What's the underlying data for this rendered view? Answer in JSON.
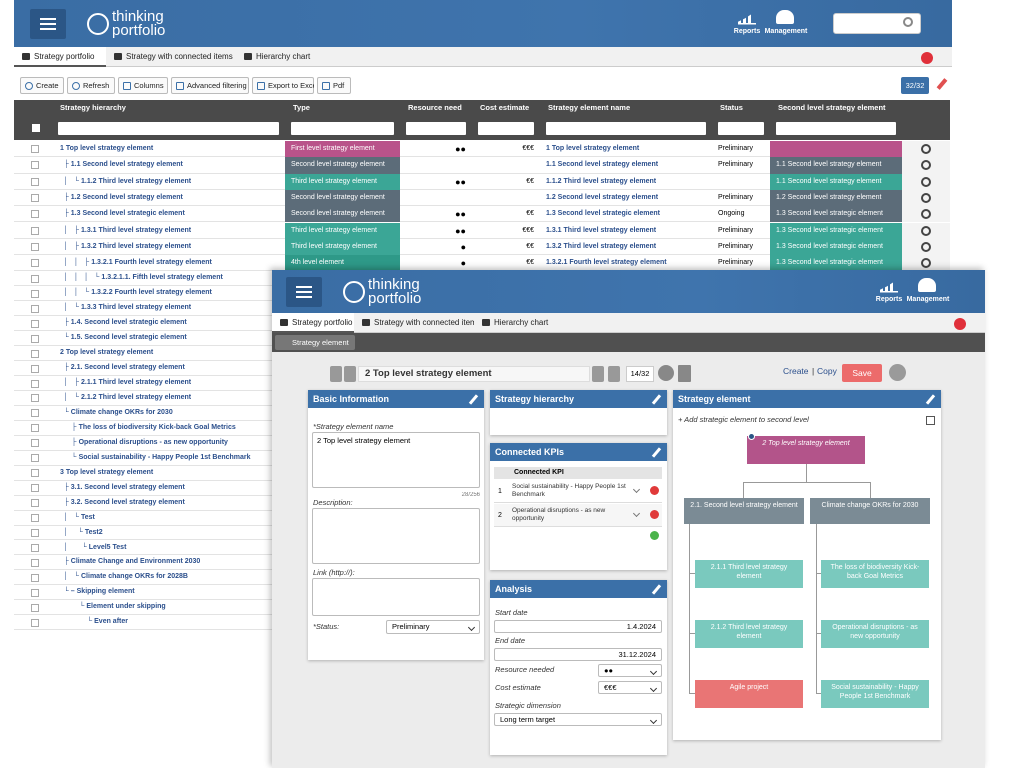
{
  "back": {
    "header": {
      "brand_line1": "thinking",
      "brand_line2": "portfolio",
      "reports": "Reports",
      "management": "Management"
    },
    "tabs": [
      "Strategy portfolio",
      "Strategy with connected items",
      "Hierarchy chart"
    ],
    "toolbar": [
      "Create",
      "Refresh",
      "Columns",
      "Advanced filtering",
      "Export to Excel",
      "Pdf"
    ],
    "count": "32/32",
    "columns": [
      "Strategy hierarchy",
      "Type",
      "Resource need",
      "Cost estimate",
      "Strategy element name",
      "Status",
      "Second level strategy element"
    ],
    "rows": [
      {
        "hierarchy": "1 Top level strategy element",
        "type": "First level strategy element",
        "type_color": "#b9538a",
        "resource": "●●",
        "cost": "€€€",
        "element": "1 Top level strategy element",
        "status": "Preliminary",
        "second": null,
        "second_color": "#b9538a"
      },
      {
        "hierarchy": "  ├ 1.1 Second level strategy element",
        "type": "Second level strategy element",
        "type_color": "#5c6c79",
        "resource": null,
        "cost": null,
        "element": "1.1 Second level strategy element",
        "status": "Preliminary",
        "second": "1.1 Second level strategy element",
        "second_color": "#5c6c79"
      },
      {
        "hierarchy": "  │   └ 1.1.2 Third level strategy element",
        "type": "Third level strategy element",
        "type_color": "#3ba696",
        "resource": "●●",
        "cost": "€€",
        "element": "1.1.2 Third level strategy element",
        "status": null,
        "second": "1.1 Second level strategy element",
        "second_color": "#3ba696"
      },
      {
        "hierarchy": "  ├ 1.2 Second level strategy element",
        "type": "Second level strategy element",
        "type_color": "#5c6c79",
        "resource": null,
        "cost": null,
        "element": "1.2 Second level strategy element",
        "status": "Preliminary",
        "second": "1.2 Second level strategy element",
        "second_color": "#5c6c79"
      },
      {
        "hierarchy": "  ├ 1.3 Second level strategic element",
        "type": "Second level strategy element",
        "type_color": "#5c6c79",
        "resource": "●●",
        "cost": "€€",
        "element": "1.3 Second level strategic element",
        "status": "Ongoing",
        "second": "1.3 Second level strategic element",
        "second_color": "#5c6c79"
      },
      {
        "hierarchy": "  │   ├ 1.3.1 Third level strategy element",
        "type": "Third level strategy element",
        "type_color": "#3ba696",
        "resource": "●●",
        "cost": "€€€",
        "element": "1.3.1 Third level strategy element",
        "status": "Preliminary",
        "second": "1.3 Second level strategic element",
        "second_color": "#3ba696"
      },
      {
        "hierarchy": "  │   ├ 1.3.2 Third level strategy element",
        "type": "Third level strategy element",
        "type_color": "#3ba696",
        "resource": "●",
        "cost": "€€",
        "element": "1.3.2 Third level strategy element",
        "status": "Preliminary",
        "second": "1.3 Second level strategic element",
        "second_color": "#3ba696"
      },
      {
        "hierarchy": "  │   │   ├ 1.3.2.1 Fourth level strategy element",
        "type": "4th level element",
        "type_color": "#2e9988",
        "resource": "●",
        "cost": "€€",
        "element": "1.3.2.1 Fourth level strategy element",
        "status": "Preliminary",
        "second": "1.3 Second level strategic element",
        "second_color": "#3ba696"
      },
      {
        "hierarchy": "  │   │   │   └ 1.3.2.1.1. Fifth level strategy element"
      },
      {
        "hierarchy": "  │   │   └ 1.3.2.2 Fourth level strategy element"
      },
      {
        "hierarchy": "  │   └ 1.3.3 Third level strategy element"
      },
      {
        "hierarchy": "  ├ 1.4. Second level strategic element"
      },
      {
        "hierarchy": "  └ 1.5. Second level strategic element"
      },
      {
        "hierarchy": "2 Top level strategy element"
      },
      {
        "hierarchy": "  ├ 2.1. Second level strategy element"
      },
      {
        "hierarchy": "  │   ├ 2.1.1 Third level strategy element"
      },
      {
        "hierarchy": "  │   └ 2.1.2 Third level strategy element"
      },
      {
        "hierarchy": "  └ Climate change OKRs for 2030"
      },
      {
        "hierarchy": "      ├ The loss of biodiversity Kick-back Goal Metrics"
      },
      {
        "hierarchy": "      ├ Operational disruptions - as new opportunity"
      },
      {
        "hierarchy": "      └ Social sustainability - Happy People 1st Benchmark"
      },
      {
        "hierarchy": "3 Top level strategy element"
      },
      {
        "hierarchy": "  ├ 3.1. Second level strategy element"
      },
      {
        "hierarchy": "  ├ 3.2. Second level strategy element"
      },
      {
        "hierarchy": "  │   └ Test"
      },
      {
        "hierarchy": "  │     └ Test2"
      },
      {
        "hierarchy": "  │       └ Level5 Test"
      },
      {
        "hierarchy": "  ├ Climate Change and Environment 2030"
      },
      {
        "hierarchy": "  │   └ Climate change OKRs for 2028B"
      },
      {
        "hierarchy": "  └ – Skipping element"
      },
      {
        "hierarchy": "          └ Element under skipping"
      },
      {
        "hierarchy": "              └ Even after"
      }
    ]
  },
  "front": {
    "header": {
      "brand_line1": "thinking",
      "brand_line2": "portfolio",
      "reports": "Reports",
      "management": "Management"
    },
    "tabs": [
      "Strategy portfolio",
      "Strategy with connected items",
      "Hierarchy chart"
    ],
    "subtab": "Strategy element",
    "nav": {
      "title": "2 Top level strategy element",
      "position": "14/32",
      "create": "Create",
      "separator": "|",
      "copy": "Copy",
      "save": "Save"
    },
    "basic": {
      "title": "Basic Information",
      "name_label": "*Strategy element name",
      "name_value": "2 Top level strategy element",
      "counter": "28/256",
      "description_label": "Description:",
      "link_label": "Link (http://):",
      "status_label": "*Status:",
      "status_value": "Preliminary"
    },
    "hierarchy_panel": {
      "title": "Strategy hierarchy"
    },
    "kpis": {
      "title": "Connected KPIs",
      "header": "Connected KPI",
      "rows": [
        {
          "number": "1",
          "kpi": "Social sustainability - Happy People 1st Benchmark"
        },
        {
          "number": "2",
          "kpi": "Operational disruptions - as new opportunity"
        }
      ]
    },
    "analysis": {
      "title": "Analysis",
      "start_label": "Start date",
      "start_value": "1.4.2024",
      "end_label": "End date",
      "end_value": "31.12.2024",
      "resource_label": "Resource needed",
      "resource_value": "●●",
      "cost_label": "Cost estimate",
      "cost_value": "€€€",
      "dimension_label": "Strategic dimension",
      "dimension_value": "Long term target"
    },
    "element_panel": {
      "title": "Strategy element",
      "add_link": "+ Add strategic element to second level",
      "root": "2 Top level strategy element",
      "branches": [
        {
          "label": "2.1. Second level strategy element",
          "children": [
            "2.1.1 Third level strategy element",
            "2.1.2 Third level strategy element",
            "Agile project"
          ]
        },
        {
          "label": "Climate change OKRs for 2030",
          "children": [
            "The loss of biodiversity Kick-back Goal Metrics",
            "Operational disruptions - as new opportunity",
            "Social sustainability - Happy People 1st Benchmark"
          ]
        }
      ]
    }
  }
}
